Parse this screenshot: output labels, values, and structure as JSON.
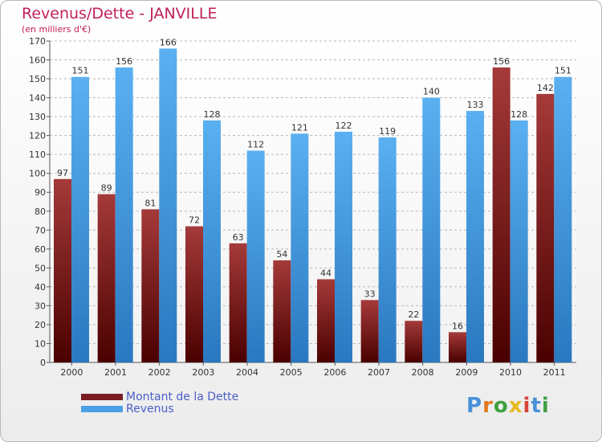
{
  "chart_data": {
    "type": "bar",
    "title": "Revenus/Dette - JANVILLE",
    "subtitle": "(en milliers d'€)",
    "categories": [
      "2000",
      "2001",
      "2002",
      "2003",
      "2004",
      "2005",
      "2006",
      "2007",
      "2008",
      "2009",
      "2010",
      "2011"
    ],
    "series": [
      {
        "name": "Montant de la Dette",
        "values": [
          97,
          89,
          81,
          72,
          63,
          54,
          44,
          33,
          22,
          16,
          156,
          142
        ],
        "color": "#7a1c24"
      },
      {
        "name": "Revenus",
        "values": [
          151,
          156,
          166,
          128,
          112,
          121,
          122,
          119,
          140,
          133,
          128,
          151
        ],
        "color": "#4aa0e6"
      }
    ],
    "ylim": [
      0,
      170
    ],
    "ytick_step": 10,
    "grid": true,
    "legend": "bottom-left"
  },
  "brand": {
    "letters": [
      "P",
      "r",
      "o",
      "x",
      "i",
      "t",
      "i"
    ],
    "colors": [
      "#4a90d9",
      "#e07a20",
      "#3da040",
      "#e8b820",
      "#d9443a",
      "#4a90d9",
      "#3da040"
    ]
  }
}
